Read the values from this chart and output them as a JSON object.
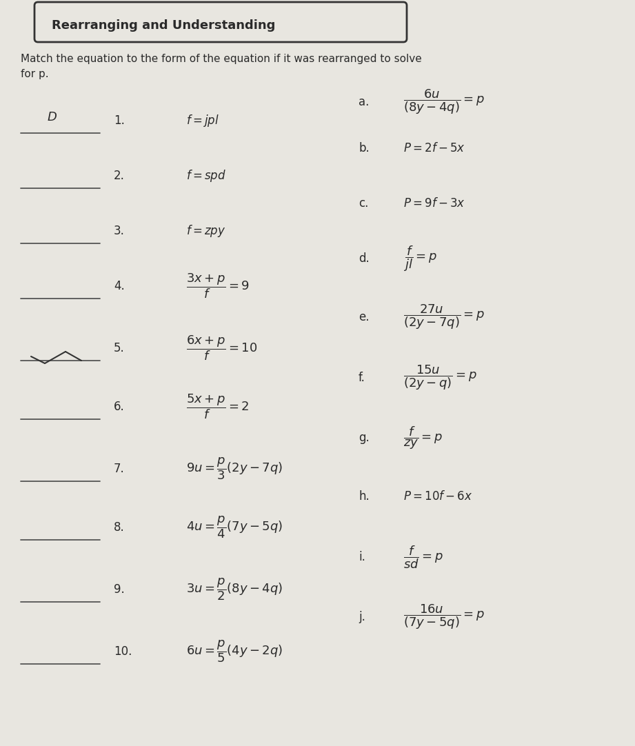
{
  "background_color": "#e8e6e0",
  "text_color": "#2a2a2a",
  "title_text": "Rearranging and Understanding",
  "subtitle_line1": "Match the equation to the form of the equation if it was rearranged to solve",
  "subtitle_line2": "for p.",
  "left_numbers": [
    "1.",
    "2.",
    "3.",
    "4.",
    "5.",
    "6.",
    "7.",
    "8.",
    "9.",
    "10."
  ],
  "right_labels": [
    "a.",
    "b.",
    "c.",
    "d.",
    "e.",
    "f.",
    "g.",
    "h.",
    "i.",
    "j."
  ],
  "answer_1": "D",
  "fig_width": 9.21,
  "fig_height": 10.82,
  "dpi": 100
}
